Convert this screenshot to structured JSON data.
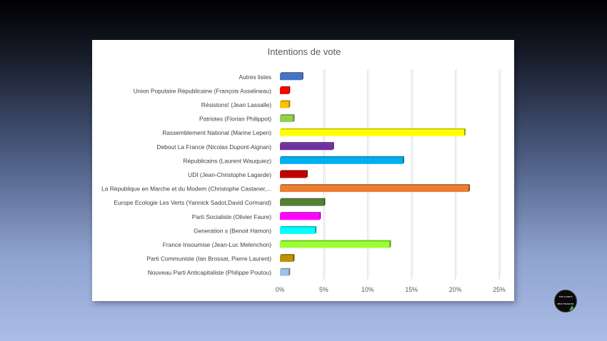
{
  "chart_data": {
    "type": "bar",
    "orientation": "horizontal",
    "title": "Intentions de vote",
    "categories": [
      "Autres listes",
      "Union Populaire Républicaine (François Asselineau)",
      "Résistons! (Jean Lassalle)",
      "Patriotes (Florian Philippot)",
      "Rassemblement National (Marine Lepen)",
      "Debout La France (Nicolas Dupont-Aignan)",
      "Républicains (Laurent Wauquiez)",
      "UDI (Jean-Christophe Lagarde)",
      "La République en Marche et du Modem (Christophe Castaner,...",
      "Europe Ecologie Les Verts (Yannick Sadot,David Cormand)",
      "Parti Socialiste (Olivier Faure)",
      "Generation s (Benoit Hamon)",
      "France Insoumise (Jean-Luc Melenchon)",
      "Parti Communiste (Ian Brossat, Pierre Laurent)",
      "Nouveau Parti Anticapitaliste (Philippe Poutou)"
    ],
    "values": [
      2.5,
      1,
      1,
      1.5,
      21,
      6,
      14,
      3,
      21.5,
      5,
      4.5,
      4,
      12.5,
      1.5,
      1
    ],
    "colors": [
      "#4472c4",
      "#ff0000",
      "#ffc000",
      "#92d050",
      "#ffff00",
      "#7030a0",
      "#00b0f0",
      "#c00000",
      "#ed7d31",
      "#548235",
      "#ff00ff",
      "#00ffff",
      "#99ff33",
      "#bf9000",
      "#9dc3e6"
    ],
    "xticks": [
      0,
      5,
      10,
      15,
      20,
      25
    ],
    "xtick_labels": [
      "0%",
      "5%",
      "10%",
      "15%",
      "20%",
      "25%"
    ],
    "xlim": [
      0,
      25
    ],
    "xlabel": "",
    "ylabel": "",
    "grid": true,
    "legend": "none"
  },
  "logo": {
    "line1": "THE GUIDE'S",
    "line2": "NEW FINANCES",
    "accent": "#2fb82f"
  }
}
